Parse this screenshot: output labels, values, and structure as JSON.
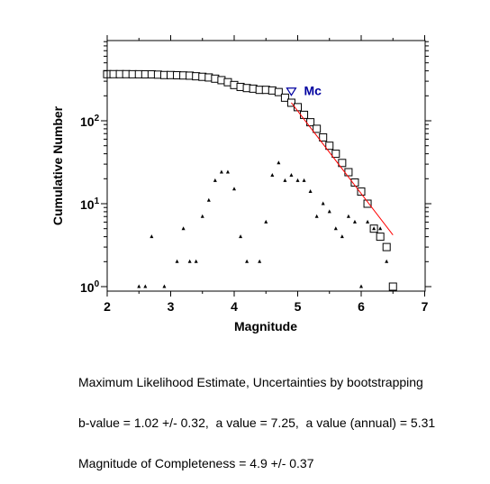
{
  "chart_data": {
    "type": "scatter",
    "xlabel": "Magnitude",
    "ylabel": "Cumulative Number",
    "xlim": [
      2,
      7
    ],
    "ylim": [
      0.9,
      1000
    ],
    "yscale": "log",
    "grid": false,
    "x_ticks": [
      "2",
      "3",
      "4",
      "5",
      "6",
      "7"
    ],
    "y_ticks": [
      {
        "value": 1,
        "base": "10",
        "exp": "0"
      },
      {
        "value": 10,
        "base": "10",
        "exp": "1"
      },
      {
        "value": 100,
        "base": "10",
        "exp": "2"
      }
    ],
    "series": [
      {
        "marker": "square",
        "color": "#000000",
        "points": [
          [
            2.0,
            365
          ],
          [
            2.1,
            365
          ],
          [
            2.2,
            365
          ],
          [
            2.3,
            365
          ],
          [
            2.4,
            364
          ],
          [
            2.5,
            364
          ],
          [
            2.6,
            363
          ],
          [
            2.7,
            363
          ],
          [
            2.8,
            360
          ],
          [
            2.9,
            356
          ],
          [
            3.0,
            356
          ],
          [
            3.1,
            354
          ],
          [
            3.2,
            352
          ],
          [
            3.3,
            350
          ],
          [
            3.4,
            344
          ],
          [
            3.5,
            339
          ],
          [
            3.6,
            333
          ],
          [
            3.7,
            322
          ],
          [
            3.8,
            309
          ],
          [
            3.9,
            292
          ],
          [
            4.0,
            270
          ],
          [
            4.1,
            256
          ],
          [
            4.2,
            248
          ],
          [
            4.3,
            244
          ],
          [
            4.4,
            236
          ],
          [
            4.5,
            236
          ],
          [
            4.6,
            232
          ],
          [
            4.7,
            222
          ],
          [
            4.8,
            190
          ],
          [
            4.9,
            165
          ],
          [
            5.0,
            146
          ],
          [
            5.1,
            118
          ],
          [
            5.2,
            96
          ],
          [
            5.3,
            80
          ],
          [
            5.4,
            63
          ],
          [
            5.5,
            50
          ],
          [
            5.6,
            40
          ],
          [
            5.7,
            31
          ],
          [
            5.8,
            24
          ],
          [
            5.9,
            18
          ],
          [
            6.0,
            14
          ],
          [
            6.1,
            10
          ],
          [
            6.2,
            5
          ],
          [
            6.3,
            4
          ],
          [
            6.4,
            3
          ],
          [
            6.5,
            1
          ]
        ]
      },
      {
        "marker": "triangle",
        "color": "#000000",
        "points": [
          [
            2.5,
            1
          ],
          [
            2.6,
            1
          ],
          [
            2.7,
            4
          ],
          [
            2.9,
            1
          ],
          [
            3.1,
            2
          ],
          [
            3.2,
            5
          ],
          [
            3.3,
            2
          ],
          [
            3.4,
            2
          ],
          [
            3.5,
            7
          ],
          [
            3.6,
            11
          ],
          [
            3.7,
            19
          ],
          [
            3.8,
            24
          ],
          [
            3.9,
            24
          ],
          [
            4.0,
            15
          ],
          [
            4.1,
            4
          ],
          [
            4.2,
            2
          ],
          [
            4.4,
            2
          ],
          [
            4.5,
            6
          ],
          [
            4.6,
            22
          ],
          [
            4.7,
            31
          ],
          [
            4.8,
            19
          ],
          [
            4.9,
            22
          ],
          [
            5.0,
            19
          ],
          [
            5.1,
            19
          ],
          [
            5.2,
            14
          ],
          [
            5.3,
            7
          ],
          [
            5.4,
            10
          ],
          [
            5.5,
            8
          ],
          [
            5.6,
            5
          ],
          [
            5.7,
            4
          ],
          [
            5.8,
            7
          ],
          [
            5.9,
            6
          ],
          [
            6.0,
            1
          ],
          [
            6.1,
            6
          ],
          [
            6.2,
            5
          ],
          [
            6.3,
            5
          ],
          [
            6.4,
            2
          ]
        ]
      },
      {
        "type": "line",
        "color": "#ff0000",
        "points": [
          [
            4.9,
            165
          ],
          [
            6.5,
            4.2
          ]
        ]
      }
    ],
    "annotations": [
      {
        "text": "Mc",
        "x": 4.9,
        "y": 230,
        "marker": "inverted-triangle",
        "color": "#0000a0"
      }
    ]
  },
  "caption": {
    "line1": "Maximum Likelihood Estimate, Uncertainties by bootstrapping",
    "line2": "b-value = 1.02 +/- 0.32,  a value = 7.25,  a value (annual) = 5.31",
    "line3": "Magnitude of Completeness = 4.9 +/- 0.37"
  }
}
